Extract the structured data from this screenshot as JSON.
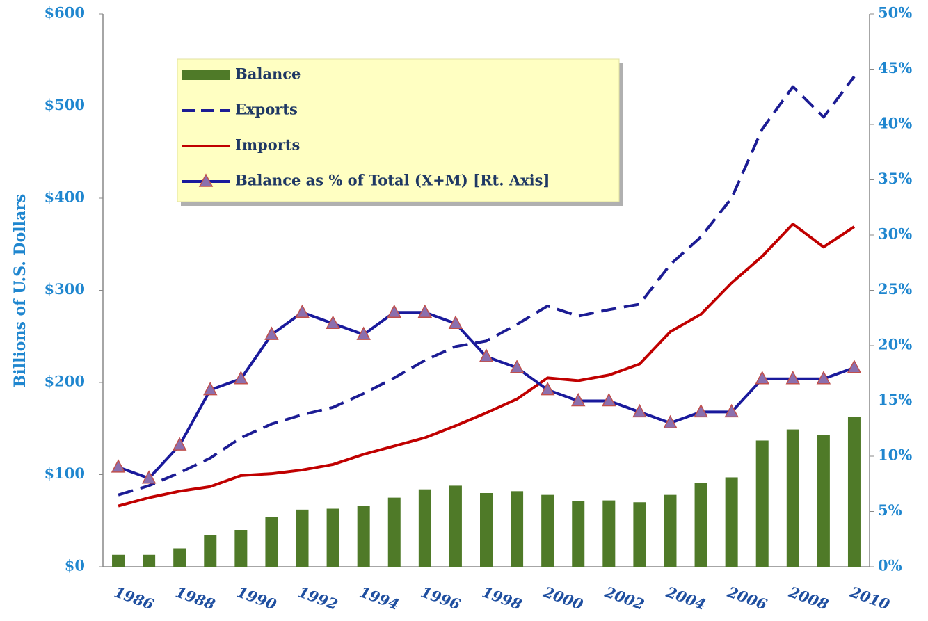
{
  "chart_data": {
    "type": "bar-line",
    "ylabel": "Billions of U.S. Dollars",
    "categories": [
      "1986",
      null,
      "1988",
      null,
      "1990",
      null,
      "1992",
      null,
      "1994",
      null,
      "1996",
      null,
      "1998",
      null,
      "2000",
      null,
      "2002",
      null,
      "2004",
      null,
      "2006",
      null,
      "2008",
      null,
      "2010"
    ],
    "series": [
      {
        "name": "Balance",
        "type": "bar",
        "color": "#4f7a28",
        "values": [
          13,
          13,
          20,
          34,
          40,
          54,
          62,
          63,
          66,
          75,
          84,
          88,
          80,
          82,
          78,
          71,
          72,
          70,
          78,
          91,
          97,
          137,
          149,
          143,
          163
        ]
      },
      {
        "name": "Exports",
        "type": "line",
        "dashed": true,
        "color": "#1c1c94",
        "values": [
          78,
          88,
          102,
          118,
          140,
          155,
          165,
          173,
          188,
          205,
          224,
          239,
          245,
          263,
          283,
          272,
          279,
          285,
          328,
          358,
          400,
          475,
          521,
          488,
          532
        ]
      },
      {
        "name": "Imports",
        "type": "line",
        "color": "#c00000",
        "values": [
          66,
          75,
          82,
          87,
          99,
          101,
          105,
          111,
          122,
          131,
          140,
          153,
          167,
          182,
          205,
          202,
          208,
          220,
          255,
          274,
          308,
          337,
          372,
          347,
          369
        ]
      },
      {
        "name": "Balance as % of Total (X+M) [Rt. Axis]",
        "type": "line",
        "axis": "y2",
        "marker": "triangle",
        "color": "#1a1a9c",
        "marker_color": "#8b6fae",
        "values": [
          9,
          8,
          11,
          16,
          17,
          21,
          23,
          22,
          21,
          23,
          23,
          22,
          19,
          18,
          16,
          15,
          15,
          14,
          13,
          14,
          14,
          17,
          17,
          17,
          18
        ]
      }
    ],
    "ylim": [
      0,
      600
    ],
    "yticks": [
      {
        "value": 0,
        "label": "$0"
      },
      {
        "value": 100,
        "label": "$100"
      },
      {
        "value": 200,
        "label": "$200"
      },
      {
        "value": 300,
        "label": "$300"
      },
      {
        "value": 400,
        "label": "$400"
      },
      {
        "value": 500,
        "label": "$500"
      },
      {
        "value": 600,
        "label": "$600"
      }
    ],
    "y2lim": [
      0,
      50
    ],
    "y2ticks": [
      {
        "value": 0,
        "label": "0%"
      },
      {
        "value": 5,
        "label": "5%"
      },
      {
        "value": 10,
        "label": "10%"
      },
      {
        "value": 15,
        "label": "15%"
      },
      {
        "value": 20,
        "label": "20%"
      },
      {
        "value": 25,
        "label": "25%"
      },
      {
        "value": 30,
        "label": "30%"
      },
      {
        "value": 35,
        "label": "35%"
      },
      {
        "value": 40,
        "label": "40%"
      },
      {
        "value": 45,
        "label": "45%"
      },
      {
        "value": 50,
        "label": "50%"
      }
    ],
    "legend": "upper left"
  }
}
